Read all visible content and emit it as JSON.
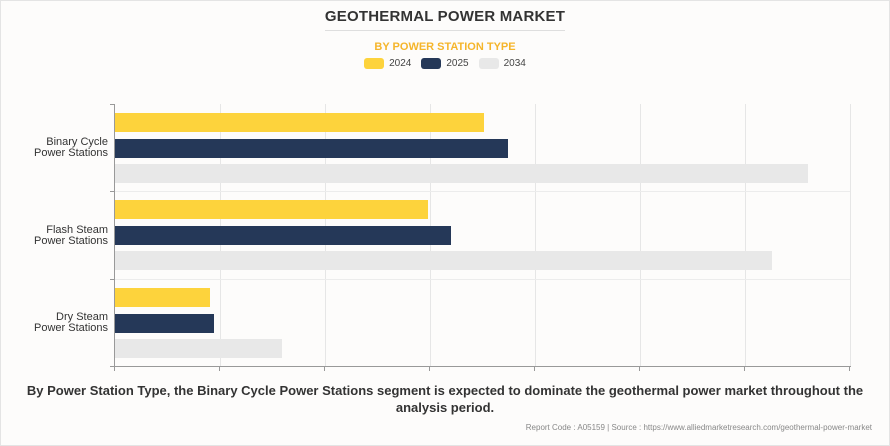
{
  "header": {
    "title": "GEOTHERMAL POWER MARKET",
    "subtitle": "BY POWER STATION TYPE"
  },
  "colors": {
    "2024": "#fdd33c",
    "2025": "#253858",
    "2034": "#e8e8e8",
    "subtitle": "#f5b52b"
  },
  "legend": [
    {
      "label": "2024",
      "color": "#fdd33c"
    },
    {
      "label": "2025",
      "color": "#253858"
    },
    {
      "label": "2034",
      "color": "#e8e8e8"
    }
  ],
  "chart_data": {
    "type": "bar",
    "orientation": "horizontal",
    "title": "GEOTHERMAL POWER MARKET",
    "subtitle": "BY POWER STATION TYPE",
    "categories": [
      "Binary Cycle Power Stations",
      "Flash Steam Power Stations",
      "Dry Steam Power Stations"
    ],
    "series": [
      {
        "name": "2024",
        "values": [
          3.51,
          2.98,
          0.9
        ]
      },
      {
        "name": "2025",
        "values": [
          3.74,
          3.2,
          0.94
        ]
      },
      {
        "name": "2034",
        "values": [
          6.6,
          6.26,
          1.59
        ]
      }
    ],
    "xlabel": "",
    "ylabel": "",
    "xlim": [
      0,
      7
    ],
    "x_tick_labels_shown": false,
    "value_units": "relative (gridline units; no axis values shown)",
    "grid": true,
    "legend_position": "top"
  },
  "categories_display": [
    {
      "line1": "Binary Cycle",
      "line2": "Power Stations"
    },
    {
      "line1": "Flash Steam",
      "line2": "Power Stations"
    },
    {
      "line1": "Dry Steam",
      "line2": "Power Stations"
    }
  ],
  "footer": {
    "caption": "By Power Station Type, the Binary Cycle Power Stations segment is expected to dominate the geothermal power market throughout the analysis period.",
    "source": "Report Code : A05159  |  Source : https://www.alliedmarketresearch.com/geothermal-power-market"
  }
}
